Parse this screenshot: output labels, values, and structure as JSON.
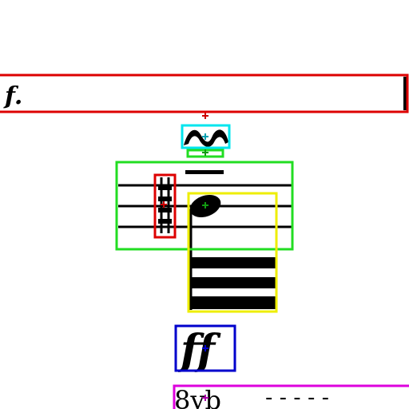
{
  "score": {
    "rehearsal_text": "f.",
    "dynamic_text": "ff",
    "octave_text": "8vb",
    "octave_dash": "- - - - -"
  },
  "boxes": [
    {
      "name": "rehearsal-mark-box",
      "color": "#dd0000"
    },
    {
      "name": "trill-ornament-box",
      "color": "#00e5ee"
    },
    {
      "name": "small-stem-box",
      "color": "#22dd22"
    },
    {
      "name": "staff-region-box",
      "color": "#22dd22"
    },
    {
      "name": "accidental-box",
      "color": "#dd0000"
    },
    {
      "name": "note-with-flags-box",
      "color": "#eeee00"
    },
    {
      "name": "dynamic-ff-box",
      "color": "#0000cc"
    },
    {
      "name": "octave-line-box",
      "color": "#dd00dd"
    }
  ],
  "markers": [
    {
      "name": "marker-rehearsal",
      "color": "#cc0000"
    },
    {
      "name": "marker-trill",
      "color": "#00a0b0"
    },
    {
      "name": "marker-stem",
      "color": "#119911"
    },
    {
      "name": "marker-accidental",
      "color": "#cc0000"
    },
    {
      "name": "marker-notehead",
      "color": "#119911"
    },
    {
      "name": "marker-dynamic",
      "color": "#0000cc"
    },
    {
      "name": "marker-octave",
      "color": "#aa00aa"
    }
  ]
}
